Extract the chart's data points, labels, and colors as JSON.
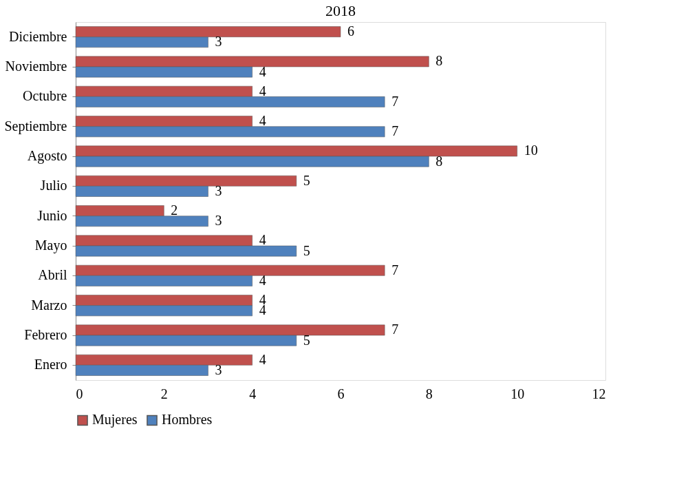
{
  "chart_data": {
    "type": "bar",
    "orientation": "horizontal",
    "title": "2018",
    "categories": [
      "Diciembre",
      "Noviembre",
      "Octubre",
      "Septiembre",
      "Agosto",
      "Julio",
      "Junio",
      "Mayo",
      "Abril",
      "Marzo",
      "Febrero",
      "Enero"
    ],
    "series": [
      {
        "name": "Mujeres",
        "color": "#c0504d",
        "values": [
          6,
          8,
          4,
          4,
          10,
          5,
          2,
          4,
          7,
          4,
          7,
          4
        ]
      },
      {
        "name": "Hombres",
        "color": "#4f81bd",
        "values": [
          3,
          4,
          7,
          7,
          8,
          3,
          3,
          5,
          4,
          4,
          5,
          3
        ]
      }
    ],
    "xlim": [
      0,
      12
    ],
    "xticks": [
      0,
      2,
      4,
      6,
      8,
      10,
      12
    ],
    "data_labels": true,
    "legend": "bottom",
    "grid": false
  }
}
